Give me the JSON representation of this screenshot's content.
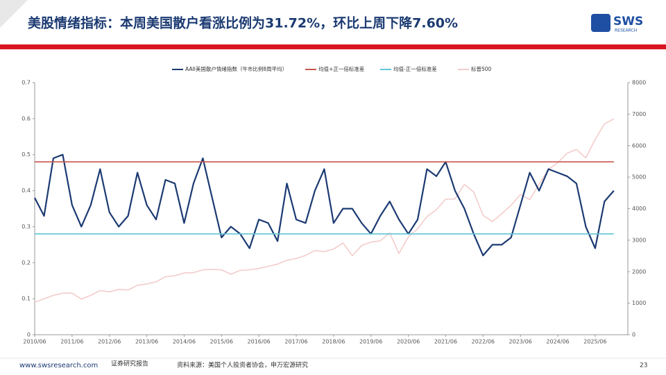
{
  "header": {
    "title": "美股情绪指标：本周美国散户看涨比例为31.72%，环比上周下降7.60%",
    "logo": "SWS",
    "logo_sub": "RESEARCH"
  },
  "chart_data": {
    "type": "line",
    "categories": [
      "2010/06",
      null,
      null,
      null,
      "2011/06",
      null,
      null,
      null,
      "2012/06",
      null,
      null,
      null,
      "2013/06",
      null,
      null,
      null,
      "2014/06",
      null,
      null,
      null,
      "2015/06",
      null,
      null,
      null,
      "2016/06",
      null,
      null,
      null,
      "2017/06",
      null,
      null,
      null,
      "2018/06",
      null,
      null,
      null,
      "2019/06",
      null,
      null,
      null,
      "2020/06",
      null,
      null,
      null,
      "2021/06",
      null,
      null,
      null,
      "2022/06",
      null,
      null,
      null,
      "2023/06",
      null,
      null,
      null,
      "2024/06",
      null,
      null,
      null,
      "2025/06",
      null,
      null
    ],
    "series": [
      {
        "name": "AAII美国散户情绪指数（牛市比例8周平均）",
        "color": "#1b3a72",
        "values": [
          0.38,
          0.33,
          0.49,
          0.5,
          0.36,
          0.3,
          0.36,
          0.46,
          0.34,
          0.3,
          0.33,
          0.45,
          0.36,
          0.32,
          0.43,
          0.42,
          0.31,
          0.42,
          0.49,
          0.38,
          0.27,
          0.3,
          0.28,
          0.24,
          0.32,
          0.31,
          0.26,
          0.42,
          0.32,
          0.31,
          0.4,
          0.46,
          0.31,
          0.35,
          0.35,
          0.31,
          0.28,
          0.33,
          0.37,
          0.32,
          0.28,
          0.32,
          0.46,
          0.44,
          0.48,
          0.4,
          0.35,
          0.28,
          0.22,
          0.25,
          0.25,
          0.27,
          0.36,
          0.45,
          0.4,
          0.46,
          0.45,
          0.44,
          0.42,
          0.3,
          0.24,
          0.37,
          0.4
        ]
      },
      {
        "name": "均值+正一倍标准差",
        "color": "#c9574f",
        "values": [
          0.48,
          0.48,
          0.48,
          0.48,
          0.48,
          0.48,
          0.48,
          0.48,
          0.48,
          0.48,
          0.48,
          0.48,
          0.48,
          0.48,
          0.48,
          0.48,
          0.48,
          0.48,
          0.48,
          0.48,
          0.48,
          0.48,
          0.48,
          0.48,
          0.48,
          0.48,
          0.48,
          0.48,
          0.48,
          0.48,
          0.48,
          0.48,
          0.48,
          0.48,
          0.48,
          0.48,
          0.48,
          0.48,
          0.48,
          0.48,
          0.48,
          0.48,
          0.48,
          0.48,
          0.48,
          0.48,
          0.48,
          0.48,
          0.48,
          0.48,
          0.48,
          0.48,
          0.48,
          0.48,
          0.48,
          0.48,
          0.48,
          0.48,
          0.48,
          0.48,
          0.48,
          0.48,
          0.48
        ]
      },
      {
        "name": "均值-正一倍标准差",
        "color": "#5ec6d6",
        "values": [
          0.28,
          0.28,
          0.28,
          0.28,
          0.28,
          0.28,
          0.28,
          0.28,
          0.28,
          0.28,
          0.28,
          0.28,
          0.28,
          0.28,
          0.28,
          0.28,
          0.28,
          0.28,
          0.28,
          0.28,
          0.28,
          0.28,
          0.28,
          0.28,
          0.28,
          0.28,
          0.28,
          0.28,
          0.28,
          0.28,
          0.28,
          0.28,
          0.28,
          0.28,
          0.28,
          0.28,
          0.28,
          0.28,
          0.28,
          0.28,
          0.28,
          0.28,
          0.28,
          0.28,
          0.28,
          0.28,
          0.28,
          0.28,
          0.28,
          0.28,
          0.28,
          0.28,
          0.28,
          0.28,
          0.28,
          0.28,
          0.28,
          0.28,
          0.28,
          0.28,
          0.28,
          0.28,
          0.28
        ]
      },
      {
        "name": "标普500",
        "color": "#f3cccb",
        "axis": "y2",
        "values": [
          1030,
          1140,
          1250,
          1320,
          1320,
          1130,
          1250,
          1400,
          1360,
          1440,
          1420,
          1570,
          1610,
          1680,
          1840,
          1870,
          1960,
          1970,
          2060,
          2070,
          2060,
          1920,
          2040,
          2060,
          2100,
          2170,
          2240,
          2360,
          2420,
          2520,
          2670,
          2640,
          2720,
          2910,
          2510,
          2830,
          2940,
          2980,
          3230,
          2580,
          3100,
          3360,
          3750,
          3970,
          4300,
          4310,
          4770,
          4530,
          3790,
          3590,
          3840,
          4110,
          4450,
          4290,
          4770,
          5250,
          5460,
          5760,
          5880,
          5610,
          6200,
          6690,
          6850
        ]
      }
    ],
    "ylim": [
      0,
      0.7
    ],
    "yticks": [
      0,
      0.1,
      0.2,
      0.3,
      0.4,
      0.5,
      0.6,
      0.7
    ],
    "y2lim": [
      0,
      8000
    ],
    "y2ticks": [
      0,
      1000,
      2000,
      3000,
      4000,
      5000,
      6000,
      7000,
      8000
    ],
    "legend": "top"
  },
  "footer": {
    "site": "www.swsresearch.com",
    "report": "证券研究报告",
    "source": "资料来源：美国个人投资者协会，申万宏源研究",
    "page": "23"
  }
}
